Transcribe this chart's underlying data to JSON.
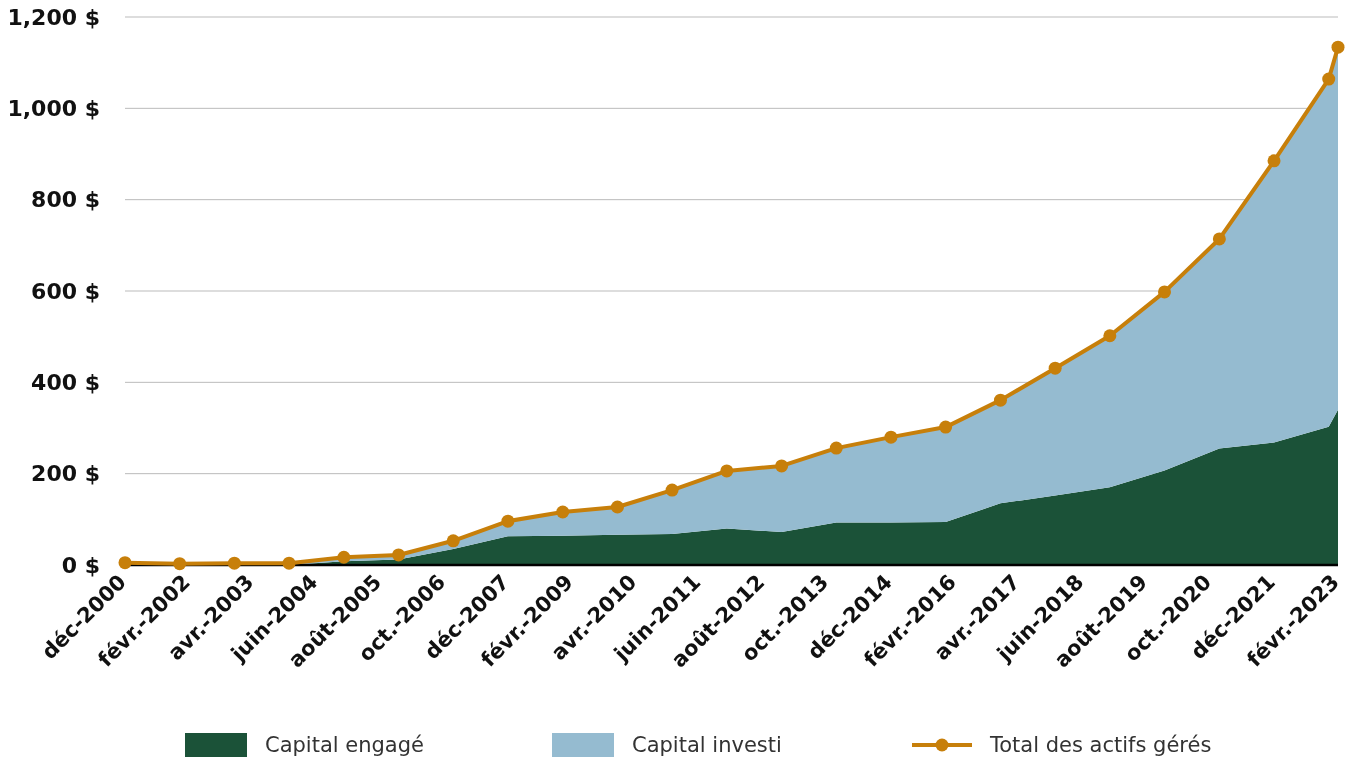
{
  "chart_data": {
    "type": "area",
    "stacked": true,
    "x": [
      "2000-12",
      "2001-12",
      "2002-12",
      "2003-12",
      "2004-12",
      "2005-12",
      "2006-12",
      "2007-12",
      "2008-12",
      "2009-12",
      "2010-12",
      "2011-12",
      "2012-12",
      "2013-12",
      "2014-12",
      "2015-12",
      "2016-12",
      "2017-12",
      "2018-12",
      "2019-12",
      "2020-12",
      "2021-12",
      "2022-12",
      "2023-02"
    ],
    "series": [
      {
        "name": "Capital engagé",
        "color": "#1b5238",
        "values": [
          0,
          0,
          0,
          0,
          8,
          12,
          35,
          63,
          64,
          66,
          68,
          80,
          72,
          93,
          93,
          94,
          135,
          152,
          170,
          207,
          255,
          268,
          303,
          340
        ]
      },
      {
        "name": "Capital investi",
        "color": "#95bbd0",
        "values": [
          5,
          3,
          4,
          4,
          9,
          10,
          18,
          33,
          52,
          61,
          96,
          126,
          145,
          163,
          187,
          208,
          226,
          279,
          332,
          391,
          459,
          617,
          761,
          794
        ]
      },
      {
        "name": "Total des actifs gérés",
        "type": "line",
        "color": "#c77f0a",
        "marker": "circle",
        "values": [
          5,
          3,
          4,
          4,
          17,
          22,
          53,
          96,
          116,
          127,
          164,
          206,
          217,
          256,
          280,
          302,
          361,
          431,
          502,
          598,
          714,
          885,
          1064,
          1134
        ]
      }
    ],
    "xlim": [
      "2000-12",
      "2023-02"
    ],
    "xticks": [
      {
        "value": "2000-12",
        "label": "déc-2000"
      },
      {
        "value": "2002-02",
        "label": "févr.-2002"
      },
      {
        "value": "2003-04",
        "label": "avr.-2003"
      },
      {
        "value": "2004-06",
        "label": "juin-2004"
      },
      {
        "value": "2005-08",
        "label": "août-2005"
      },
      {
        "value": "2006-10",
        "label": "oct.-2006"
      },
      {
        "value": "2007-12",
        "label": "déc-2007"
      },
      {
        "value": "2009-02",
        "label": "févr.-2009"
      },
      {
        "value": "2010-04",
        "label": "avr.-2010"
      },
      {
        "value": "2011-06",
        "label": "juin-2011"
      },
      {
        "value": "2012-08",
        "label": "août-2012"
      },
      {
        "value": "2013-10",
        "label": "oct.-2013"
      },
      {
        "value": "2014-12",
        "label": "déc-2014"
      },
      {
        "value": "2016-02",
        "label": "févr.-2016"
      },
      {
        "value": "2017-04",
        "label": "avr.-2017"
      },
      {
        "value": "2018-06",
        "label": "juin-2018"
      },
      {
        "value": "2019-08",
        "label": "août-2019"
      },
      {
        "value": "2020-10",
        "label": "oct.-2020"
      },
      {
        "value": "2021-12",
        "label": "déc-2021"
      },
      {
        "value": "2023-02",
        "label": "févr.-2023"
      }
    ],
    "ylim": [
      0,
      1200
    ],
    "yticks": [
      {
        "value": 0,
        "label": "0 $"
      },
      {
        "value": 200,
        "label": "200 $"
      },
      {
        "value": 400,
        "label": "400 $"
      },
      {
        "value": 600,
        "label": "600 $"
      },
      {
        "value": 800,
        "label": "800 $"
      },
      {
        "value": 1000,
        "label": "1,000 $"
      },
      {
        "value": 1200,
        "label": "1,200 $"
      }
    ],
    "grid": "y",
    "legend": "bottom"
  }
}
